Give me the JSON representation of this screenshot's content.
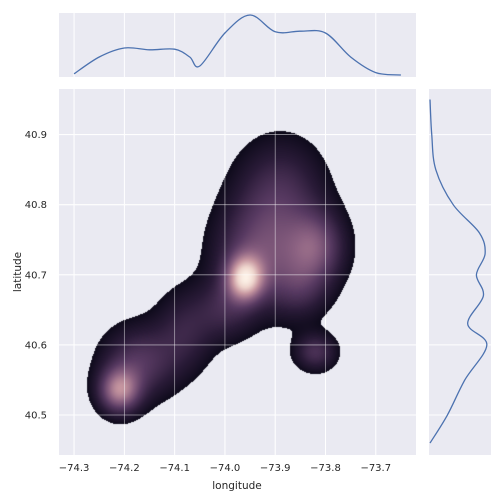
{
  "chart_data": {
    "type": "joint-kde",
    "xlabel": "longitude",
    "ylabel": "latitude",
    "xlim": [
      -74.33,
      -73.62
    ],
    "ylim": [
      40.443,
      40.965
    ],
    "grid": true,
    "xticks": [
      -74.3,
      -74.2,
      -74.1,
      -74.0,
      -73.9,
      -73.8,
      -73.7
    ],
    "xtick_labels": [
      "−74.3",
      "−74.2",
      "−74.1",
      "−74.0",
      "−73.9",
      "−73.8",
      "−73.7"
    ],
    "yticks": [
      40.5,
      40.6,
      40.7,
      40.8,
      40.9
    ],
    "ytick_labels": [
      "40.5",
      "40.6",
      "40.7",
      "40.8",
      "40.9"
    ],
    "colors": {
      "panel_bg": "#eaeaf2",
      "grid": "#ffffff",
      "marginal_line": "#4c72b0",
      "density_low": "#0d0a1a",
      "density_mid": "#6b4a72",
      "density_high": "#fdf0e6"
    },
    "density_components": [
      {
        "x": -74.21,
        "y": 40.535,
        "weight": 1.0,
        "sx": 0.028,
        "sy": 0.022
      },
      {
        "x": -74.17,
        "y": 40.575,
        "weight": 0.55,
        "sx": 0.05,
        "sy": 0.035
      },
      {
        "x": -74.08,
        "y": 40.62,
        "weight": 0.35,
        "sx": 0.04,
        "sy": 0.04
      },
      {
        "x": -73.96,
        "y": 40.695,
        "weight": 1.25,
        "sx": 0.025,
        "sy": 0.022
      },
      {
        "x": -73.93,
        "y": 40.73,
        "weight": 0.65,
        "sx": 0.06,
        "sy": 0.05
      },
      {
        "x": -73.82,
        "y": 40.74,
        "weight": 0.7,
        "sx": 0.04,
        "sy": 0.035
      },
      {
        "x": -73.89,
        "y": 40.82,
        "weight": 0.45,
        "sx": 0.06,
        "sy": 0.05
      },
      {
        "x": -73.82,
        "y": 40.59,
        "weight": 0.5,
        "sx": 0.028,
        "sy": 0.018
      },
      {
        "x": -74.0,
        "y": 40.65,
        "weight": 0.35,
        "sx": 0.04,
        "sy": 0.03
      },
      {
        "x": -73.85,
        "y": 40.68,
        "weight": 0.35,
        "sx": 0.04,
        "sy": 0.03
      }
    ],
    "marginal_x": {
      "x": [
        -74.3,
        -74.25,
        -74.2,
        -74.15,
        -74.1,
        -74.07,
        -74.05,
        -74.0,
        -73.95,
        -73.9,
        -73.85,
        -73.8,
        -73.75,
        -73.7,
        -73.65
      ],
      "density": [
        0.02,
        0.3,
        0.45,
        0.42,
        0.43,
        0.3,
        0.15,
        0.7,
        1.0,
        0.72,
        0.73,
        0.7,
        0.3,
        0.04,
        0.0
      ]
    },
    "marginal_y": {
      "y": [
        40.46,
        40.5,
        40.55,
        40.6,
        40.63,
        40.67,
        40.7,
        40.73,
        40.76,
        40.8,
        40.85,
        40.9,
        40.95
      ],
      "density": [
        0.0,
        0.3,
        0.6,
        0.98,
        0.65,
        0.92,
        0.8,
        0.95,
        0.85,
        0.4,
        0.1,
        0.03,
        0.0
      ]
    }
  }
}
